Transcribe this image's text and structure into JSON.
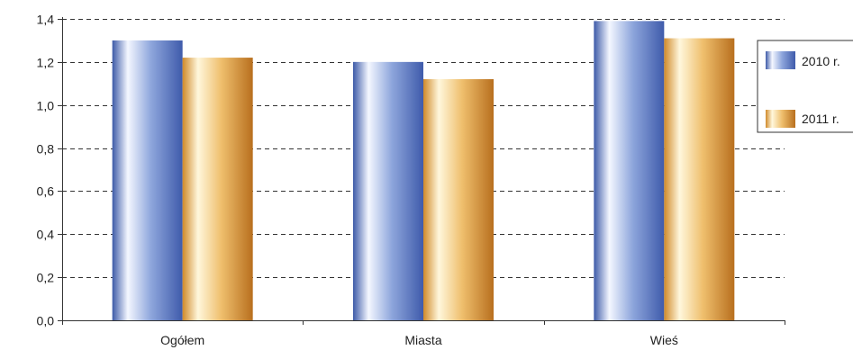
{
  "chart_data": {
    "type": "bar",
    "categories": [
      "Ogółem",
      "Miasta",
      "Wieś"
    ],
    "series": [
      {
        "name": "2010 r.",
        "values": [
          1.3,
          1.2,
          1.39
        ],
        "color": "#4a67b5"
      },
      {
        "name": "2011 r.",
        "values": [
          1.22,
          1.12,
          1.31
        ],
        "color": "#c8862a"
      }
    ],
    "ylim": [
      0,
      1.4
    ],
    "yticks": [
      "0,0",
      "0,2",
      "0,4",
      "0,6",
      "0,8",
      "1,0",
      "1,2",
      "1,4"
    ],
    "grid": true,
    "grid_style": "dashed",
    "legend_position": "right"
  }
}
